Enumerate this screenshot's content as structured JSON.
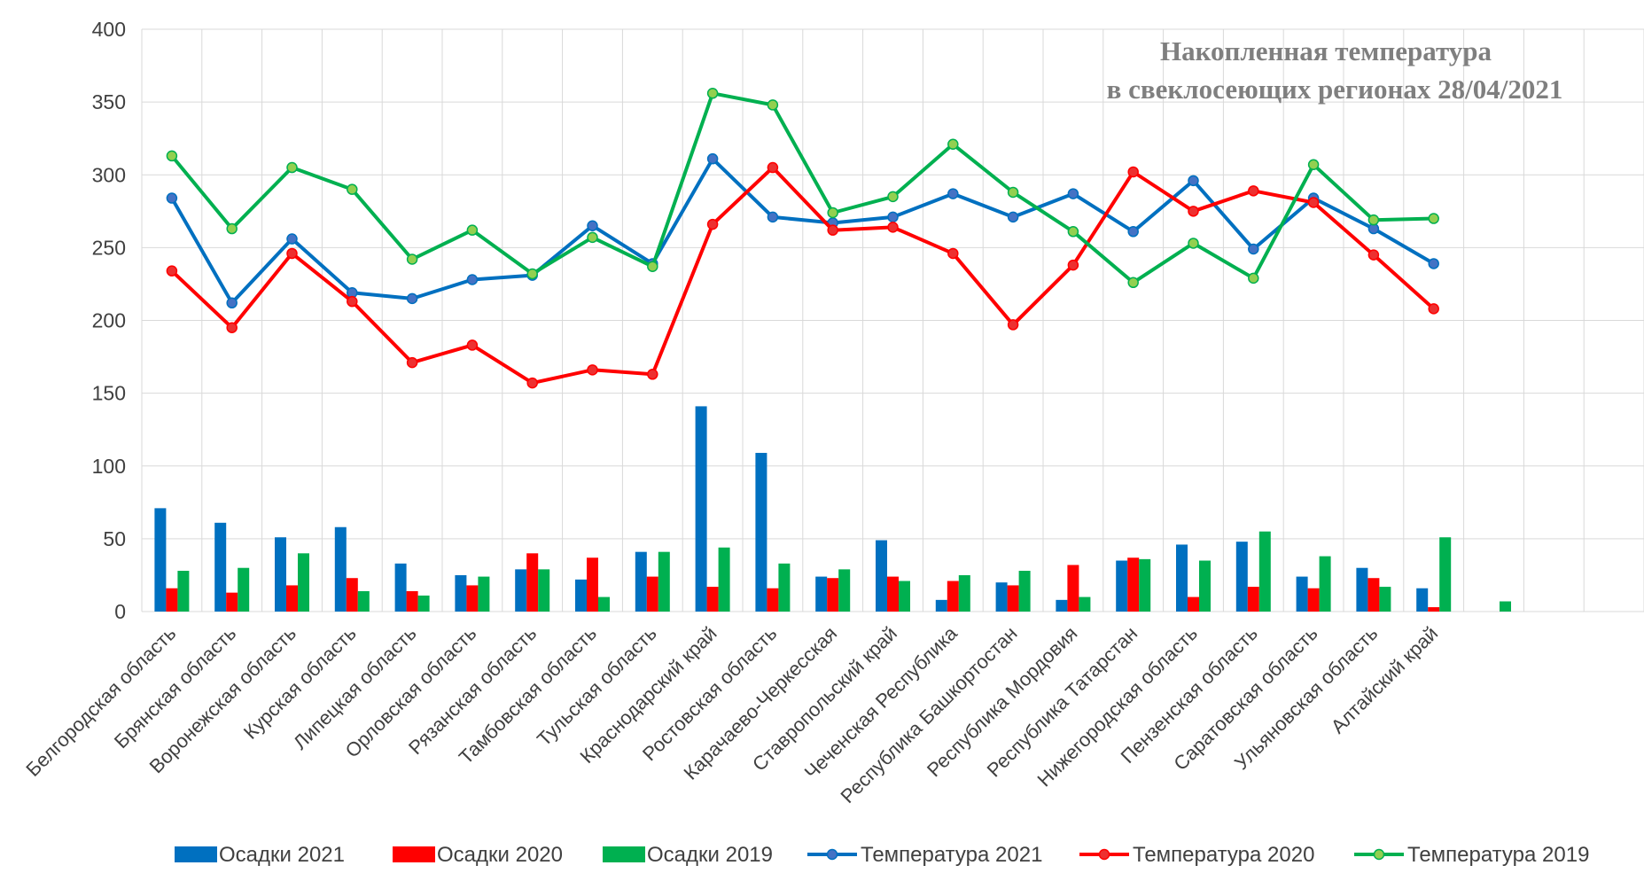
{
  "chart_data": {
    "type": "bar",
    "title_lines": [
      "Накопленная температура",
      "в свеклосеющих регионах 28/04/2021"
    ],
    "ylim": [
      0,
      400
    ],
    "yticks": [
      0,
      50,
      100,
      150,
      200,
      250,
      300,
      350,
      400
    ],
    "grid": true,
    "legend_position": "bottom",
    "categories": [
      "Белгородская область",
      "Брянская область",
      "Воронежская область",
      "Курская область",
      "Липецкая область",
      "Орловская область",
      "Рязанская область",
      "Тамбовская область",
      "Тульская область",
      "Краснодарский край",
      "Ростовская область",
      "Карачаево-Черкесская",
      "Ставропольский край",
      "Чеченская Республика",
      "Республика Башкортостан",
      "Республика Мордовия",
      "Республика Татарстан",
      "Нижегородская область",
      "Пензенская область",
      "Саратовская область",
      "Ульяновская область",
      "Алтайский край",
      "",
      "",
      ""
    ],
    "series": [
      {
        "name": "Осадки 2021",
        "kind": "bar",
        "color": "#0070C0",
        "values": [
          71,
          61,
          51,
          58,
          33,
          25,
          29,
          22,
          41,
          141,
          109,
          24,
          49,
          8,
          20,
          8,
          35,
          46,
          48,
          24,
          30,
          16,
          null,
          null,
          null
        ]
      },
      {
        "name": "Осадки 2020",
        "kind": "bar",
        "color": "#FF0000",
        "values": [
          16,
          13,
          18,
          23,
          14,
          18,
          40,
          37,
          24,
          17,
          16,
          23,
          24,
          21,
          18,
          32,
          37,
          10,
          17,
          16,
          23,
          3,
          null,
          null,
          null
        ]
      },
      {
        "name": "Осадки 2019",
        "kind": "bar",
        "color": "#00B050",
        "values": [
          28,
          30,
          40,
          14,
          11,
          24,
          29,
          10,
          41,
          44,
          33,
          29,
          21,
          25,
          28,
          10,
          36,
          35,
          55,
          38,
          17,
          51,
          7,
          null,
          null
        ]
      },
      {
        "name": "Температура 2021",
        "kind": "line",
        "color": "#0070C0",
        "marker": "#4472C4",
        "values": [
          284,
          212,
          256,
          219,
          215,
          228,
          231,
          265,
          239,
          311,
          271,
          267,
          271,
          287,
          271,
          287,
          261,
          296,
          249,
          284,
          263,
          239,
          null,
          null,
          null
        ]
      },
      {
        "name": "Температура 2020",
        "kind": "line",
        "color": "#FF0000",
        "marker": "#ED3030",
        "values": [
          234,
          195,
          246,
          213,
          171,
          183,
          157,
          166,
          163,
          266,
          305,
          262,
          264,
          246,
          197,
          238,
          302,
          275,
          289,
          281,
          245,
          208,
          null,
          null,
          null
        ]
      },
      {
        "name": "Температура 2019",
        "kind": "line",
        "color": "#00B050",
        "marker": "#92D050",
        "values": [
          313,
          263,
          305,
          290,
          242,
          262,
          232,
          257,
          237,
          356,
          348,
          274,
          285,
          321,
          288,
          261,
          226,
          253,
          229,
          307,
          269,
          270,
          null,
          null,
          null
        ]
      }
    ]
  }
}
